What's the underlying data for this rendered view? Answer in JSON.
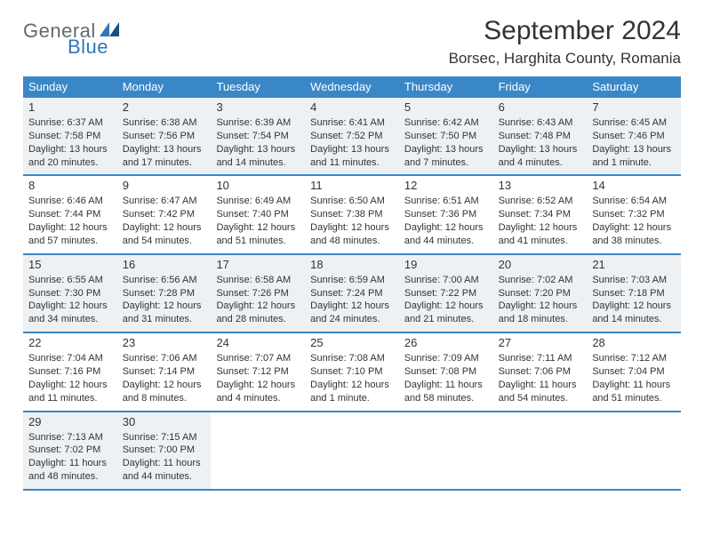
{
  "logo": {
    "general": "General",
    "blue": "Blue"
  },
  "title": "September 2024",
  "location": "Borsec, Harghita County, Romania",
  "colors": {
    "header_bg": "#3a87c8",
    "header_text": "#ffffff",
    "shaded_bg": "#eef1f3",
    "border": "#3a87c8",
    "body_text": "#333333",
    "logo_gray": "#5f6b73",
    "logo_blue": "#2f77b8",
    "page_bg": "#ffffff"
  },
  "days_of_week": [
    "Sunday",
    "Monday",
    "Tuesday",
    "Wednesday",
    "Thursday",
    "Friday",
    "Saturday"
  ],
  "weeks": [
    {
      "shaded": true,
      "days": [
        {
          "num": "1",
          "sunrise": "Sunrise: 6:37 AM",
          "sunset": "Sunset: 7:58 PM",
          "d1": "Daylight: 13 hours",
          "d2": "and 20 minutes."
        },
        {
          "num": "2",
          "sunrise": "Sunrise: 6:38 AM",
          "sunset": "Sunset: 7:56 PM",
          "d1": "Daylight: 13 hours",
          "d2": "and 17 minutes."
        },
        {
          "num": "3",
          "sunrise": "Sunrise: 6:39 AM",
          "sunset": "Sunset: 7:54 PM",
          "d1": "Daylight: 13 hours",
          "d2": "and 14 minutes."
        },
        {
          "num": "4",
          "sunrise": "Sunrise: 6:41 AM",
          "sunset": "Sunset: 7:52 PM",
          "d1": "Daylight: 13 hours",
          "d2": "and 11 minutes."
        },
        {
          "num": "5",
          "sunrise": "Sunrise: 6:42 AM",
          "sunset": "Sunset: 7:50 PM",
          "d1": "Daylight: 13 hours",
          "d2": "and 7 minutes."
        },
        {
          "num": "6",
          "sunrise": "Sunrise: 6:43 AM",
          "sunset": "Sunset: 7:48 PM",
          "d1": "Daylight: 13 hours",
          "d2": "and 4 minutes."
        },
        {
          "num": "7",
          "sunrise": "Sunrise: 6:45 AM",
          "sunset": "Sunset: 7:46 PM",
          "d1": "Daylight: 13 hours",
          "d2": "and 1 minute."
        }
      ]
    },
    {
      "shaded": false,
      "days": [
        {
          "num": "8",
          "sunrise": "Sunrise: 6:46 AM",
          "sunset": "Sunset: 7:44 PM",
          "d1": "Daylight: 12 hours",
          "d2": "and 57 minutes."
        },
        {
          "num": "9",
          "sunrise": "Sunrise: 6:47 AM",
          "sunset": "Sunset: 7:42 PM",
          "d1": "Daylight: 12 hours",
          "d2": "and 54 minutes."
        },
        {
          "num": "10",
          "sunrise": "Sunrise: 6:49 AM",
          "sunset": "Sunset: 7:40 PM",
          "d1": "Daylight: 12 hours",
          "d2": "and 51 minutes."
        },
        {
          "num": "11",
          "sunrise": "Sunrise: 6:50 AM",
          "sunset": "Sunset: 7:38 PM",
          "d1": "Daylight: 12 hours",
          "d2": "and 48 minutes."
        },
        {
          "num": "12",
          "sunrise": "Sunrise: 6:51 AM",
          "sunset": "Sunset: 7:36 PM",
          "d1": "Daylight: 12 hours",
          "d2": "and 44 minutes."
        },
        {
          "num": "13",
          "sunrise": "Sunrise: 6:52 AM",
          "sunset": "Sunset: 7:34 PM",
          "d1": "Daylight: 12 hours",
          "d2": "and 41 minutes."
        },
        {
          "num": "14",
          "sunrise": "Sunrise: 6:54 AM",
          "sunset": "Sunset: 7:32 PM",
          "d1": "Daylight: 12 hours",
          "d2": "and 38 minutes."
        }
      ]
    },
    {
      "shaded": true,
      "days": [
        {
          "num": "15",
          "sunrise": "Sunrise: 6:55 AM",
          "sunset": "Sunset: 7:30 PM",
          "d1": "Daylight: 12 hours",
          "d2": "and 34 minutes."
        },
        {
          "num": "16",
          "sunrise": "Sunrise: 6:56 AM",
          "sunset": "Sunset: 7:28 PM",
          "d1": "Daylight: 12 hours",
          "d2": "and 31 minutes."
        },
        {
          "num": "17",
          "sunrise": "Sunrise: 6:58 AM",
          "sunset": "Sunset: 7:26 PM",
          "d1": "Daylight: 12 hours",
          "d2": "and 28 minutes."
        },
        {
          "num": "18",
          "sunrise": "Sunrise: 6:59 AM",
          "sunset": "Sunset: 7:24 PM",
          "d1": "Daylight: 12 hours",
          "d2": "and 24 minutes."
        },
        {
          "num": "19",
          "sunrise": "Sunrise: 7:00 AM",
          "sunset": "Sunset: 7:22 PM",
          "d1": "Daylight: 12 hours",
          "d2": "and 21 minutes."
        },
        {
          "num": "20",
          "sunrise": "Sunrise: 7:02 AM",
          "sunset": "Sunset: 7:20 PM",
          "d1": "Daylight: 12 hours",
          "d2": "and 18 minutes."
        },
        {
          "num": "21",
          "sunrise": "Sunrise: 7:03 AM",
          "sunset": "Sunset: 7:18 PM",
          "d1": "Daylight: 12 hours",
          "d2": "and 14 minutes."
        }
      ]
    },
    {
      "shaded": false,
      "days": [
        {
          "num": "22",
          "sunrise": "Sunrise: 7:04 AM",
          "sunset": "Sunset: 7:16 PM",
          "d1": "Daylight: 12 hours",
          "d2": "and 11 minutes."
        },
        {
          "num": "23",
          "sunrise": "Sunrise: 7:06 AM",
          "sunset": "Sunset: 7:14 PM",
          "d1": "Daylight: 12 hours",
          "d2": "and 8 minutes."
        },
        {
          "num": "24",
          "sunrise": "Sunrise: 7:07 AM",
          "sunset": "Sunset: 7:12 PM",
          "d1": "Daylight: 12 hours",
          "d2": "and 4 minutes."
        },
        {
          "num": "25",
          "sunrise": "Sunrise: 7:08 AM",
          "sunset": "Sunset: 7:10 PM",
          "d1": "Daylight: 12 hours",
          "d2": "and 1 minute."
        },
        {
          "num": "26",
          "sunrise": "Sunrise: 7:09 AM",
          "sunset": "Sunset: 7:08 PM",
          "d1": "Daylight: 11 hours",
          "d2": "and 58 minutes."
        },
        {
          "num": "27",
          "sunrise": "Sunrise: 7:11 AM",
          "sunset": "Sunset: 7:06 PM",
          "d1": "Daylight: 11 hours",
          "d2": "and 54 minutes."
        },
        {
          "num": "28",
          "sunrise": "Sunrise: 7:12 AM",
          "sunset": "Sunset: 7:04 PM",
          "d1": "Daylight: 11 hours",
          "d2": "and 51 minutes."
        }
      ]
    },
    {
      "shaded": true,
      "days": [
        {
          "num": "29",
          "sunrise": "Sunrise: 7:13 AM",
          "sunset": "Sunset: 7:02 PM",
          "d1": "Daylight: 11 hours",
          "d2": "and 48 minutes."
        },
        {
          "num": "30",
          "sunrise": "Sunrise: 7:15 AM",
          "sunset": "Sunset: 7:00 PM",
          "d1": "Daylight: 11 hours",
          "d2": "and 44 minutes."
        },
        {
          "num": "",
          "sunrise": "",
          "sunset": "",
          "d1": "",
          "d2": ""
        },
        {
          "num": "",
          "sunrise": "",
          "sunset": "",
          "d1": "",
          "d2": ""
        },
        {
          "num": "",
          "sunrise": "",
          "sunset": "",
          "d1": "",
          "d2": ""
        },
        {
          "num": "",
          "sunrise": "",
          "sunset": "",
          "d1": "",
          "d2": ""
        },
        {
          "num": "",
          "sunrise": "",
          "sunset": "",
          "d1": "",
          "d2": ""
        }
      ]
    }
  ]
}
